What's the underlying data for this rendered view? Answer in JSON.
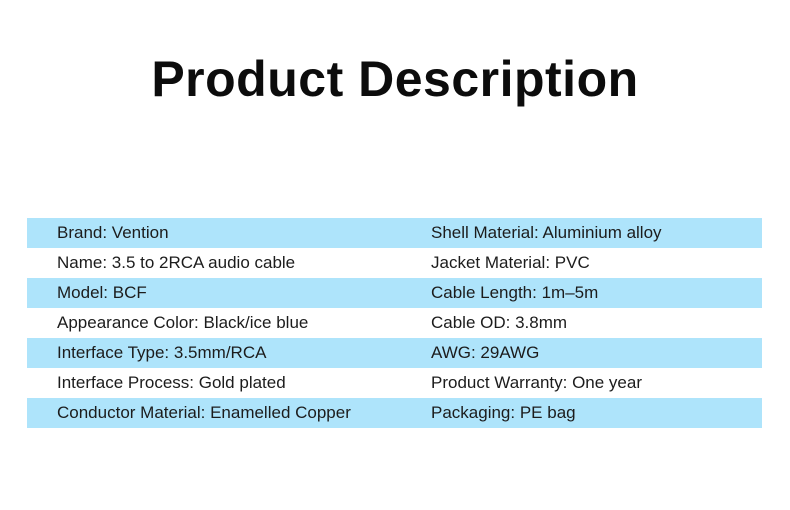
{
  "title": "Product Description",
  "colors": {
    "row_highlight": "#aee4fb",
    "text": "#1c1c1c",
    "title_text": "#0c0c0c",
    "background": "#ffffff"
  },
  "table": {
    "rows": [
      {
        "left": "Brand: Vention",
        "right": "Shell Material: Aluminium alloy"
      },
      {
        "left": "Name: 3.5 to 2RCA audio cable",
        "right": "Jacket Material: PVC"
      },
      {
        "left": "Model: BCF",
        "right": "Cable Length: 1m–5m"
      },
      {
        "left": "Appearance Color: Black/ice blue",
        "right": "Cable OD: 3.8mm"
      },
      {
        "left": "Interface Type: 3.5mm/RCA",
        "right": "AWG: 29AWG"
      },
      {
        "left": "Interface Process: Gold plated",
        "right": "Product Warranty: One year"
      },
      {
        "left": "Conductor Material: Enamelled Copper",
        "right": "Packaging: PE bag"
      }
    ]
  }
}
